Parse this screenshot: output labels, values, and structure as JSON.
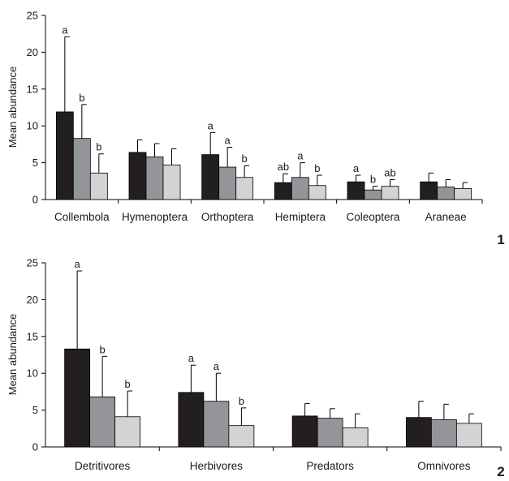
{
  "colors": {
    "s1": "#231f20",
    "s2": "#939598",
    "s3": "#d1d3d4",
    "edge": "#000000"
  },
  "chart_data": [
    {
      "type": "bar",
      "panel_label": "1",
      "ylabel": "Mean abundance",
      "xlabel": "",
      "ylim": [
        0,
        25
      ],
      "yticks": [
        0,
        5,
        10,
        15,
        20,
        25
      ],
      "grid": false,
      "categories": [
        "Collembola",
        "Hymenoptera",
        "Orthoptera",
        "Hemiptera",
        "Coleoptera",
        "Araneae"
      ],
      "series": [
        {
          "values": [
            11.9,
            6.4,
            6.1,
            2.3,
            2.4,
            2.4
          ],
          "errors": [
            10.2,
            1.7,
            3.0,
            1.2,
            0.9,
            1.2
          ]
        },
        {
          "values": [
            8.3,
            5.8,
            4.4,
            3.0,
            1.3,
            1.7
          ],
          "errors": [
            4.6,
            1.8,
            2.7,
            2.0,
            0.5,
            1.0
          ]
        },
        {
          "values": [
            3.6,
            4.7,
            3.0,
            1.9,
            1.8,
            1.5
          ],
          "errors": [
            2.6,
            2.2,
            1.6,
            1.4,
            0.9,
            0.8
          ]
        }
      ],
      "annotations": [
        [
          "a",
          "b",
          "b"
        ],
        [
          "",
          "",
          ""
        ],
        [
          "a",
          "a",
          "b"
        ],
        [
          "ab",
          "a",
          "b"
        ],
        [
          "a",
          "b",
          "ab"
        ],
        [
          "",
          "",
          ""
        ]
      ]
    },
    {
      "type": "bar",
      "panel_label": "2",
      "ylabel": "Mean abundance",
      "xlabel": "",
      "ylim": [
        0,
        25
      ],
      "yticks": [
        0,
        5,
        10,
        15,
        20,
        25
      ],
      "grid": false,
      "categories": [
        "Detritivores",
        "Herbivores",
        "Predators",
        "Omnivores"
      ],
      "series": [
        {
          "values": [
            13.3,
            7.4,
            4.2,
            4.0
          ],
          "errors": [
            10.6,
            3.7,
            1.7,
            2.2
          ]
        },
        {
          "values": [
            6.8,
            6.2,
            3.9,
            3.7
          ],
          "errors": [
            5.5,
            3.8,
            1.3,
            2.1
          ]
        },
        {
          "values": [
            4.1,
            2.9,
            2.6,
            3.2
          ],
          "errors": [
            3.5,
            2.4,
            1.9,
            1.3
          ]
        }
      ],
      "annotations": [
        [
          "a",
          "b",
          "b"
        ],
        [
          "a",
          "a",
          "b"
        ],
        [
          "",
          "",
          ""
        ],
        [
          "",
          "",
          ""
        ]
      ]
    }
  ]
}
